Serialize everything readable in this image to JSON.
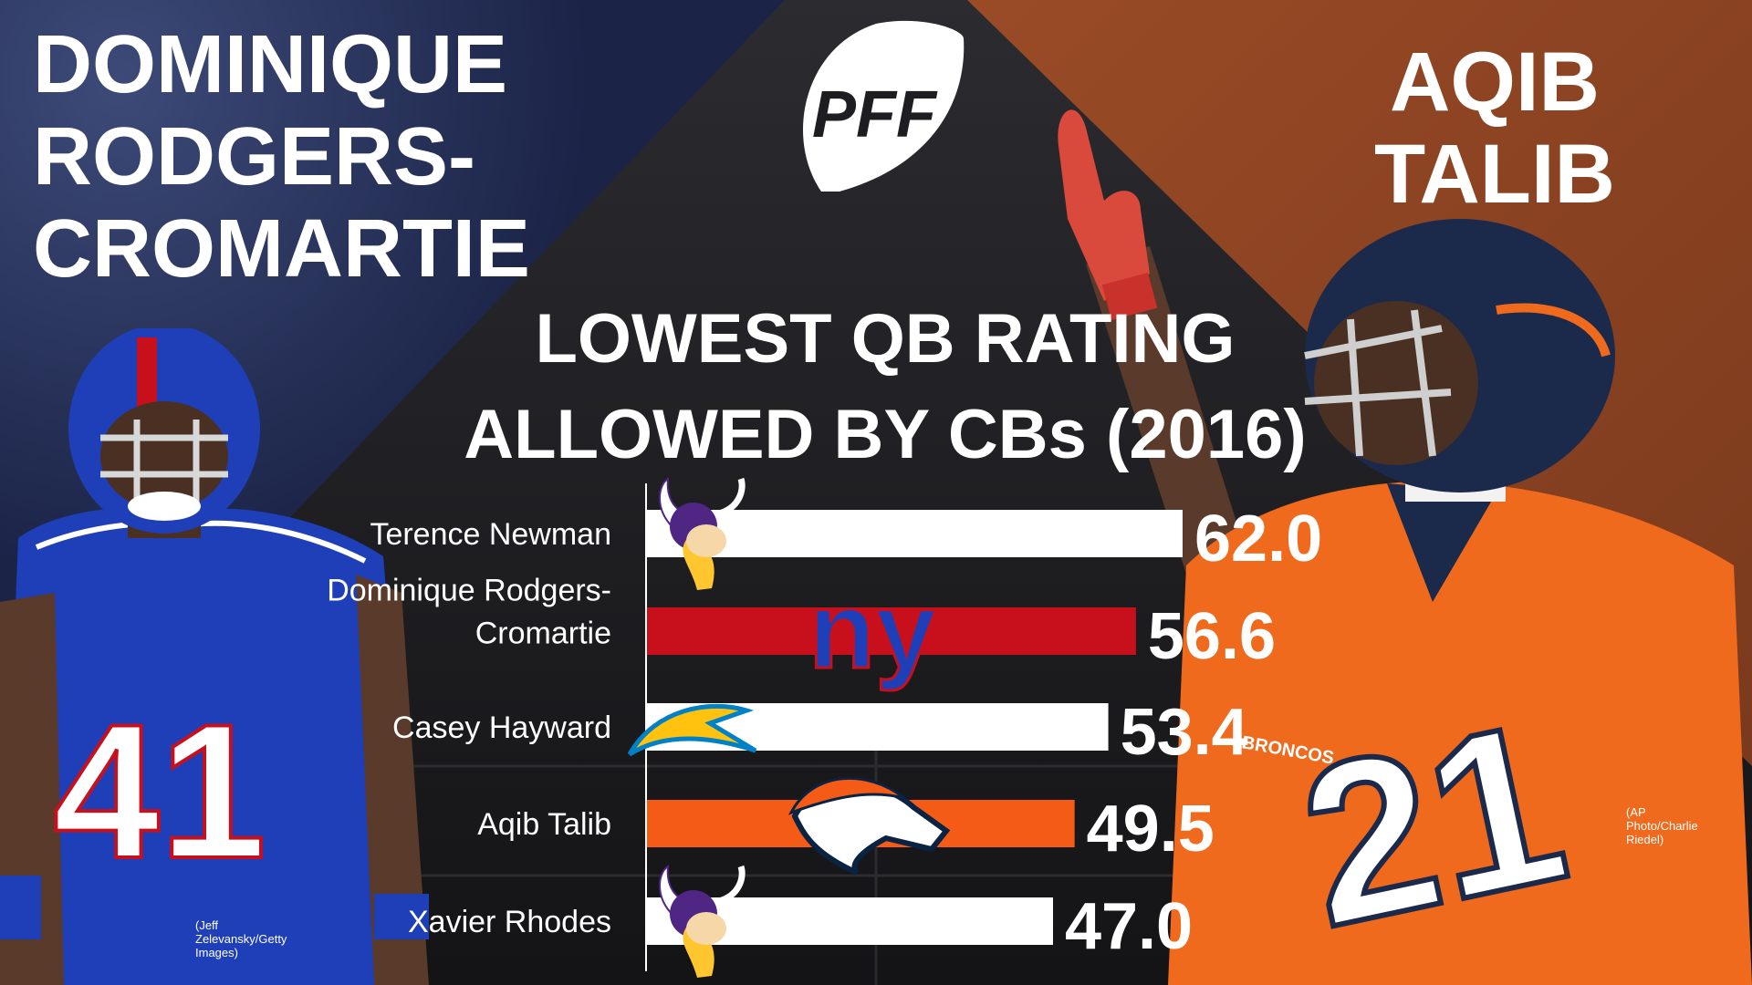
{
  "left_player": {
    "name_lines": [
      "DOMINIQUE",
      "RODGERS-",
      "CROMARTIE"
    ],
    "photo_credit": "(Jeff Zelevansky/Getty Images)",
    "jersey_number": "41"
  },
  "right_player": {
    "name_lines": [
      "AQIB",
      "TALIB"
    ],
    "photo_credit": "(AP Photo/Charlie Riedel)",
    "jersey_number": "21",
    "jersey_text": "BRONCOS"
  },
  "logo_text": "PFF",
  "colors": {
    "left_bg": "#1d2b52",
    "right_bg": "#8a4323",
    "center_bg": "#1e1e22",
    "giants_red": "#c8101c",
    "broncos_orange": "#f35b17",
    "bar_white": "#ffffff"
  },
  "chart_data": {
    "type": "bar",
    "orientation": "horizontal",
    "title": "LOWEST QB RATING ALLOWED BY CBs (2016)",
    "categories": [
      "Terence Newman",
      "Dominique Rodgers-Cromartie",
      "Casey Hayward",
      "Aqib Talib",
      "Xavier Rhodes"
    ],
    "category_lines": [
      [
        "Terence Newman"
      ],
      [
        "Dominique Rodgers-",
        "Cromartie"
      ],
      [
        "Casey Hayward"
      ],
      [
        "Aqib Talib"
      ],
      [
        "Xavier Rhodes"
      ]
    ],
    "values": [
      62.0,
      56.6,
      53.4,
      49.5,
      47.0
    ],
    "value_labels": [
      "62.0",
      "56.6",
      "53.4",
      "49.5",
      "47.0"
    ],
    "bar_colors": [
      "#ffffff",
      "#c8101c",
      "#ffffff",
      "#f35b17",
      "#ffffff"
    ],
    "team_icons": [
      "vikings-icon",
      "giants-ny-icon",
      "chargers-bolt-icon",
      "broncos-horse-icon",
      "vikings-icon"
    ],
    "giants_logo_text": "ny",
    "xlim": [
      0,
      62.0
    ],
    "grid": false,
    "legend": "none"
  }
}
